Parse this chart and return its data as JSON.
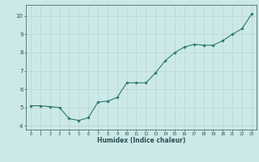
{
  "x_vals": [
    0,
    1,
    2,
    3,
    4,
    5,
    6,
    7,
    8,
    9,
    10,
    11,
    12,
    13,
    14,
    15,
    16,
    17,
    18,
    19,
    20,
    21,
    22,
    23
  ],
  "y_vals": [
    5.1,
    5.1,
    5.05,
    5.0,
    4.4,
    4.3,
    4.45,
    5.3,
    5.35,
    5.55,
    6.35,
    6.35,
    6.35,
    6.9,
    7.55,
    8.0,
    8.3,
    8.45,
    8.4,
    8.4,
    8.65,
    9.0,
    9.3,
    10.1
  ],
  "x_labels": [
    "0",
    "1",
    "2",
    "3",
    "4",
    "5",
    "6",
    "7",
    "8",
    "9",
    "10",
    "11",
    "12",
    "13",
    "14",
    "15",
    "16",
    "17",
    "18",
    "19",
    "20",
    "21",
    "22",
    "23"
  ],
  "ylim": [
    3.8,
    10.6
  ],
  "yticks": [
    4,
    5,
    6,
    7,
    8,
    9,
    10
  ],
  "xlim": [
    -0.5,
    23.5
  ],
  "xlabel": "Humidex (Indice chaleur)",
  "line_color": "#2d7a6e",
  "bg_color": "#cce8e8",
  "grid_color": "#b8d4d4",
  "spine_color": "#4a7070",
  "tick_color": "#2a5050",
  "figsize": [
    3.2,
    2.0
  ],
  "dpi": 100
}
